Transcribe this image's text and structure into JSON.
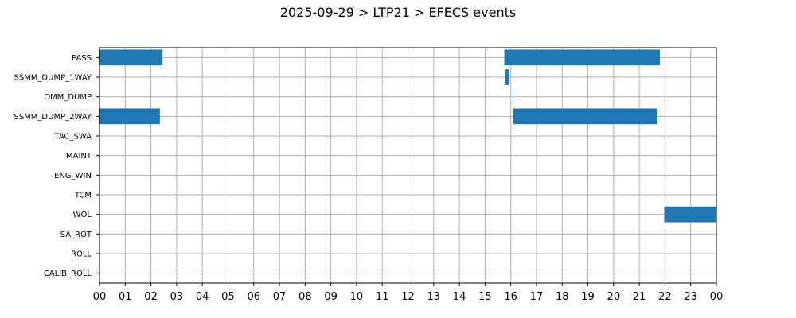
{
  "chart_data": {
    "type": "gantt",
    "title": "2025-09-29 > LTP21 > EFECS events",
    "xlabel": "",
    "ylabel": "",
    "x_unit": "hour of day",
    "xlim": [
      0,
      24
    ],
    "x_ticks": [
      "00",
      "01",
      "02",
      "03",
      "04",
      "05",
      "06",
      "07",
      "08",
      "09",
      "10",
      "11",
      "12",
      "13",
      "14",
      "15",
      "16",
      "17",
      "18",
      "19",
      "20",
      "21",
      "22",
      "23",
      "00"
    ],
    "categories": [
      "PASS",
      "SSMM_DUMP_1WAY",
      "OMM_DUMP",
      "SSMM_DUMP_2WAY",
      "TAC_SWA",
      "MAINT",
      "ENG_WIN",
      "TCM",
      "WOL",
      "SA_ROT",
      "ROLL",
      "CALIB_ROLL"
    ],
    "grid": true,
    "bar_color": "#1f77b4",
    "events": [
      {
        "category": "PASS",
        "start": 0.0,
        "end": 2.45
      },
      {
        "category": "PASS",
        "start": 15.75,
        "end": 21.8
      },
      {
        "category": "SSMM_DUMP_1WAY",
        "start": 15.78,
        "end": 15.95
      },
      {
        "category": "OMM_DUMP",
        "start": 16.07,
        "end": 16.1
      },
      {
        "category": "SSMM_DUMP_2WAY",
        "start": 0.0,
        "end": 2.35
      },
      {
        "category": "SSMM_DUMP_2WAY",
        "start": 16.1,
        "end": 21.7
      },
      {
        "category": "WOL",
        "start": 21.97,
        "end": 24.0
      }
    ]
  }
}
